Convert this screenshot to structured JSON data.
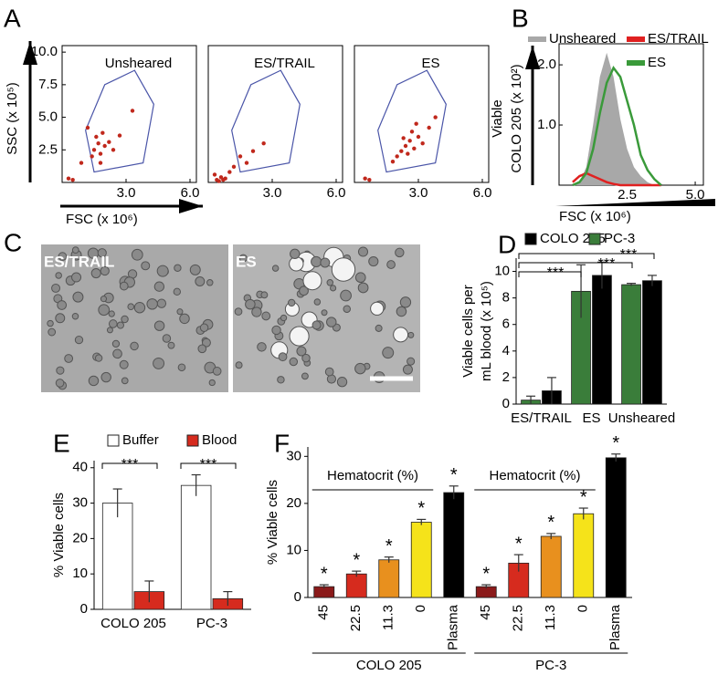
{
  "chart_data": [
    {
      "panel": "A",
      "type": "scatter",
      "title": "Unsheared",
      "xlabel": "FSC (x 10⁶)",
      "ylabel": "SSC (x 10⁵)",
      "color": "#c0281c",
      "xlim": [
        0,
        6.3
      ],
      "ylim": [
        0,
        10.5
      ],
      "xticks": [
        {
          "value": 3,
          "label": "3.0"
        },
        {
          "value": 6,
          "label": "6.0"
        }
      ],
      "yticks": [
        2.5,
        {
          "value": 5,
          "label": "5.0"
        },
        7.5,
        {
          "value": 10,
          "label": "10.0"
        }
      ],
      "x": [
        1.5,
        1.7,
        1.8,
        2.0,
        1.6,
        1.9,
        2.2,
        1.4,
        2.4,
        1.2,
        0.9,
        2.7,
        0.3,
        0.5,
        3.3,
        1.8
      ],
      "y": [
        2.5,
        3.0,
        2.2,
        2.8,
        3.5,
        3.8,
        3.1,
        2.0,
        2.5,
        4.2,
        1.5,
        3.6,
        0.3,
        0.2,
        5.5,
        1.5
      ]
    },
    {
      "type": "scatter",
      "title": "ES/TRAIL",
      "color": "#c0281c",
      "xlim": [
        0,
        6.3
      ],
      "ylim": [
        0,
        10.5
      ],
      "xticks": [
        {
          "value": 3,
          "label": "3.0"
        },
        {
          "value": 6,
          "label": "6.0"
        }
      ],
      "x": [
        0.4,
        0.6,
        0.5,
        0.8,
        1.2,
        1.5,
        1.8,
        2.1,
        0.3,
        2.6,
        1.0,
        0.7
      ],
      "y": [
        0.2,
        0.4,
        0.1,
        0.3,
        1.2,
        2.0,
        1.5,
        2.4,
        0.6,
        3.0,
        0.8,
        0.2
      ]
    },
    {
      "type": "scatter",
      "title": "ES",
      "color": "#c0281c",
      "xlim": [
        0,
        6.3
      ],
      "ylim": [
        0,
        10.5
      ],
      "xticks": [
        {
          "value": 3,
          "label": "3.0"
        },
        {
          "value": 6,
          "label": "6.0"
        }
      ],
      "x": [
        2.4,
        2.6,
        2.8,
        3.0,
        2.2,
        2.7,
        3.2,
        2.5,
        2.0,
        3.5,
        1.8,
        0.5,
        0.7,
        3.8,
        2.9,
        2.3
      ],
      "y": [
        2.8,
        3.2,
        2.6,
        3.5,
        2.4,
        3.9,
        3.0,
        2.2,
        2.0,
        4.2,
        1.6,
        0.3,
        0.2,
        5.0,
        4.5,
        3.4
      ]
    },
    {
      "panel": "B",
      "type": "line",
      "xlabel": "FSC (x 10⁶)",
      "ylabel": [
        "Viable",
        "COLO 205 (x 10²)"
      ],
      "xlim": [
        0,
        5.3
      ],
      "ylim": [
        0,
        2.35
      ],
      "xticks": [
        2.5,
        {
          "value": 5,
          "label": "5.0"
        }
      ],
      "yticks": [
        {
          "value": 1,
          "label": "1.0"
        },
        {
          "value": 2,
          "label": "2.0"
        }
      ],
      "x": [
        0.5,
        0.75,
        1.0,
        1.25,
        1.5,
        1.75,
        2.0,
        2.25,
        2.5,
        2.75,
        3.0,
        3.25,
        3.5,
        3.75
      ],
      "series": [
        {
          "name": "Unsheared",
          "color": "#a8a8a8",
          "fill": true,
          "values": [
            0,
            0.05,
            0.3,
            1.0,
            1.8,
            2.2,
            1.8,
            1.1,
            0.6,
            0.3,
            0.15,
            0.05,
            0,
            0
          ]
        },
        {
          "name": "ES/TRAIL",
          "color": "#e02020",
          "fill": false,
          "values": [
            0.05,
            0.15,
            0.2,
            0.15,
            0.1,
            0.05,
            0.02,
            0,
            0,
            0,
            0,
            0,
            0,
            0
          ]
        },
        {
          "name": "ES",
          "color": "#3a9a3a",
          "fill": false,
          "values": [
            0,
            0.05,
            0.2,
            0.6,
            1.2,
            1.7,
            1.95,
            1.8,
            1.4,
            1.0,
            0.5,
            0.25,
            0.1,
            0
          ]
        }
      ]
    },
    {
      "panel": "C",
      "type": "image",
      "labels": [
        "ES/TRAIL",
        "ES"
      ]
    },
    {
      "panel": "D",
      "type": "bar",
      "ylabel": [
        "Viable cells per",
        "mL blood (x 10⁵)"
      ],
      "categories": [
        "ES/TRAIL",
        "ES",
        "Unsheared"
      ],
      "ylim": [
        0,
        11
      ],
      "yticks": [
        0,
        2,
        4,
        6,
        8,
        10
      ],
      "series": [
        {
          "name": "COLO 205",
          "color": "#000000",
          "values": [
            1.0,
            9.7,
            9.3
          ],
          "errors": [
            1.0,
            1.0,
            0.4
          ]
        },
        {
          "name": "PC-3",
          "color": "#3a7d3a",
          "values": [
            0.3,
            8.5,
            9.0
          ],
          "errors": [
            0.3,
            2.0,
            0.1
          ]
        }
      ],
      "annotations": [
        "***",
        "***",
        "***"
      ]
    },
    {
      "panel": "E",
      "type": "bar",
      "ylabel": "% Viable cells",
      "categories": [
        "COLO 205",
        "PC-3"
      ],
      "ylim": [
        0,
        42
      ],
      "yticks": [
        0,
        10,
        20,
        30,
        40
      ],
      "series": [
        {
          "name": "Buffer",
          "color": "#ffffff",
          "values": [
            30,
            35
          ],
          "errors": [
            4,
            3
          ]
        },
        {
          "name": "Blood",
          "color": "#d62b1e",
          "values": [
            5,
            3
          ],
          "errors": [
            3,
            2
          ]
        }
      ],
      "annotations": [
        "***",
        "***"
      ]
    },
    {
      "panel": "F",
      "type": "bar",
      "ylabel": "% Viable cells",
      "categories": [
        "45",
        "22.5",
        "11.3",
        "0",
        "Plasma",
        "45",
        "22.5",
        "11.3",
        "0",
        "Plasma"
      ],
      "values": [
        2.3,
        5,
        8,
        16,
        22.3,
        2.3,
        7.3,
        13,
        17.8,
        29.7
      ],
      "errors": [
        0.4,
        0.6,
        0.6,
        0.6,
        1.4,
        0.4,
        1.8,
        0.6,
        1.2,
        0.8
      ],
      "colors": [
        "#8b1a1a",
        "#d62b1e",
        "#e8901e",
        "#f5e31a",
        "#000000",
        "#8b1a1a",
        "#d62b1e",
        "#e8901e",
        "#f5e31a",
        "#000000"
      ],
      "ylim": [
        0,
        32
      ],
      "yticks": [
        0,
        10,
        20,
        30
      ],
      "significance": [
        "*",
        "*",
        "*",
        "*",
        "*",
        "*",
        "*",
        "*",
        "*",
        "*"
      ],
      "annotations": [
        "Hematocrit (%)",
        "Hematocrit (%)"
      ],
      "groups": [
        "COLO 205",
        "PC-3"
      ]
    }
  ]
}
